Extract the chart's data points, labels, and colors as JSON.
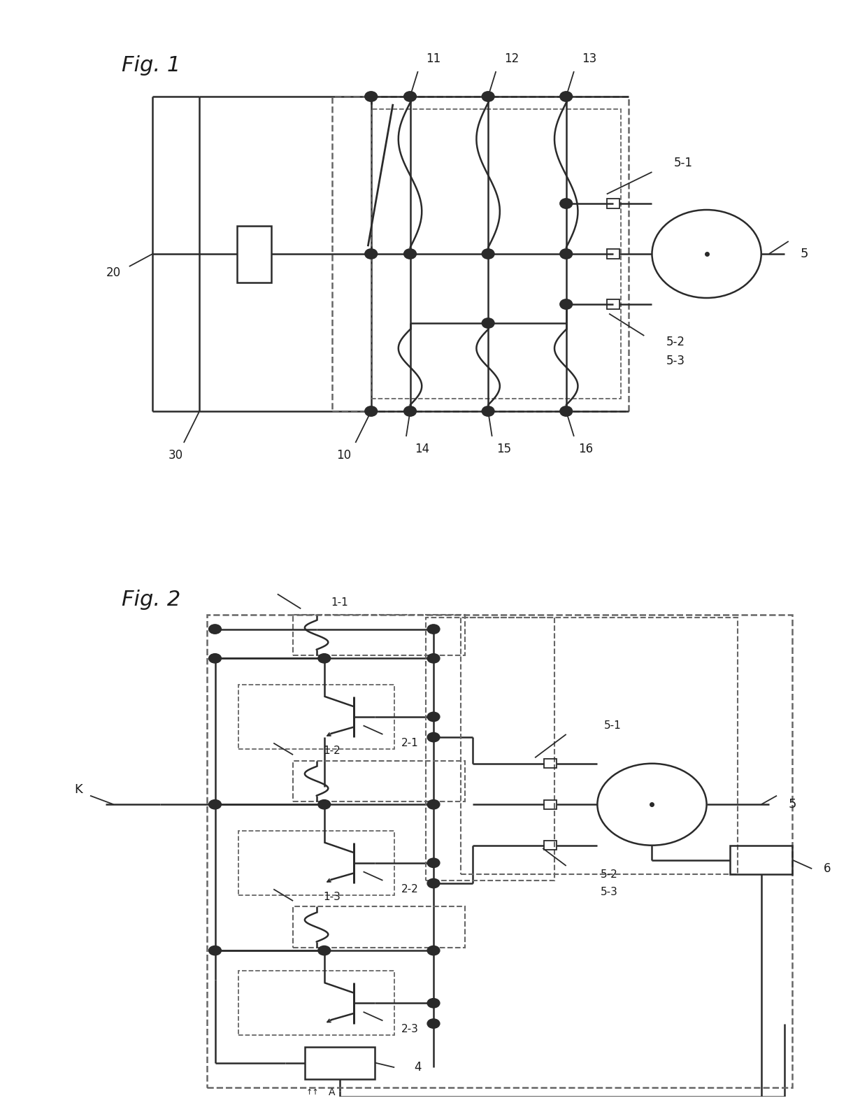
{
  "fig1_label": "Fig. 1",
  "fig2_label": "Fig. 2",
  "bg": "#ffffff",
  "lc": "#2a2a2a",
  "tc": "#1a1a1a",
  "dc": "#666666",
  "lw": 1.8,
  "lw_thin": 1.3
}
